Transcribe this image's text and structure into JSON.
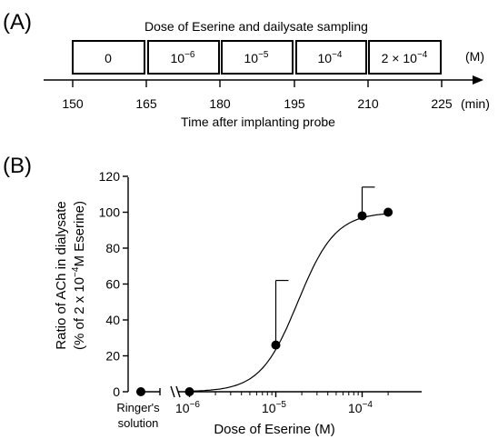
{
  "panel_a": {
    "label": "(A)",
    "title": "Dose of Eserine and dailysate sampling",
    "unit": "(M)",
    "time_unit": "(min)",
    "xlabel": "Time after implanting probe",
    "ticks": [
      "150",
      "165",
      "180",
      "195",
      "210",
      "225"
    ],
    "doses": [
      {
        "mantissa": "0",
        "exp": ""
      },
      {
        "mantissa": "10",
        "exp": "−6"
      },
      {
        "mantissa": "10",
        "exp": "−5"
      },
      {
        "mantissa": "10",
        "exp": "−4"
      },
      {
        "mantissa": "2 × 10",
        "exp": "−4"
      }
    ]
  },
  "panel_b": {
    "label": "(B)",
    "ylabel_line1": "Ratio of ACh in dialysate",
    "ylabel_line2_pre": "(% of  2  x 10",
    "ylabel_line2_exp": "−4",
    "ylabel_line2_post": "M Eserine)",
    "xlabel": "Dose of Eserine (M)",
    "ringer_label_line1": "Ringer's",
    "ringer_label_line2": "solution"
  },
  "chart_data": {
    "type": "scatter",
    "title": "",
    "xlabel": "Dose of Eserine (M)",
    "ylabel": "Ratio of ACh in dialysate (% of 2 x 10^-4 M Eserine)",
    "x_scale": "log",
    "xlim": [
      5e-07,
      0.0003
    ],
    "ylim": [
      0,
      120
    ],
    "yticks": [
      0,
      20,
      40,
      60,
      80,
      100,
      120
    ],
    "xticks": [
      {
        "value": 1e-06,
        "mantissa": "10",
        "exp": "−6"
      },
      {
        "value": 1e-05,
        "mantissa": "10",
        "exp": "−5"
      },
      {
        "value": 0.0001,
        "mantissa": "10",
        "exp": "−4"
      }
    ],
    "ringer_point": {
      "label": "Ringer's solution",
      "y": 0
    },
    "points": [
      {
        "x": 1e-06,
        "y": 0,
        "err_upper": 0
      },
      {
        "x": 1e-05,
        "y": 26,
        "err_upper": 36
      },
      {
        "x": 0.0001,
        "y": 98,
        "err_upper": 16
      },
      {
        "x": 0.0002,
        "y": 100,
        "err_upper": 0
      }
    ],
    "fit_curve": {
      "bottom": 0,
      "top": 100,
      "ec50": 1.8e-05,
      "hill": 2.0
    },
    "grid": false,
    "legend": "none"
  }
}
